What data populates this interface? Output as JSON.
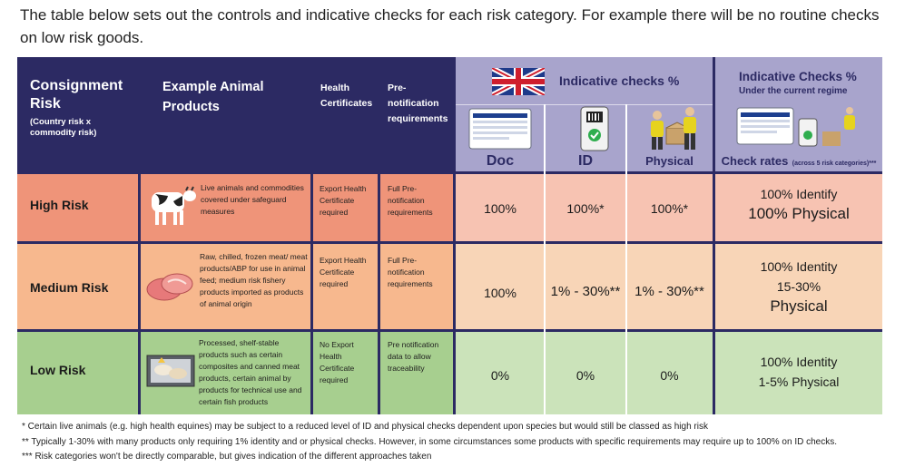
{
  "intro_text": "The table below sets out the controls and indicative checks for each risk category. For example there will be no routine checks on low risk goods.",
  "header": {
    "consignment_title": "Consignment Risk",
    "consignment_sub": "(Country risk x commodity risk)",
    "example_products": "Example Animal Products",
    "health_certificates": "Health Certificates",
    "prenotification": "Pre-notification requirements",
    "indicative_uk": "Indicative checks %",
    "indicative_current": "Indicative Checks %",
    "under_regime": "Under the current regime",
    "doc": "Doc",
    "id": "ID",
    "physical": "Physical",
    "check_rates": "Check rates",
    "check_rates_sub": "(across 5 risk categories)***"
  },
  "rows": [
    {
      "category": "High Risk",
      "products": "Live animals and commodities covered under safeguard measures",
      "certificates": "Export Health Certificate required",
      "prenotification": "Full Pre-notification requirements",
      "doc": "100%",
      "id": "100%*",
      "physical": "100%*",
      "rate_line1": "100% Identify",
      "rate_line2": "100% Physical"
    },
    {
      "category": "Medium Risk",
      "products": "Raw, chilled, frozen meat/ meat products/ABP for use in animal feed; medium risk fishery products imported as products of animal origin",
      "certificates": "Export Health Certificate required",
      "prenotification": "Full Pre-notification requirements",
      "doc": "100%",
      "id": "1% - 30%**",
      "physical": "1% - 30%**",
      "rate_line1": "100% Identity",
      "rate_line2": "15-30%",
      "rate_line3": "Physical"
    },
    {
      "category": "Low Risk",
      "products": "Processed, shelf-stable products such as certain composites and canned meat products, certain animal by products for technical use and certain fish products",
      "certificates": "No Export Health Certificate required",
      "prenotification": "Pre notification data to allow traceability",
      "doc": "0%",
      "id": "0%",
      "physical": "0%",
      "rate_line1": "100% Identity",
      "rate_line2": "1-5% Physical"
    }
  ],
  "footnotes": [
    "* Certain live animals (e.g. high health equines) may be subject to a reduced level of ID and physical checks dependent upon species but would still be classed as high risk",
    "** Typically 1-30% with many products only requiring 1% identity and or physical checks. However, in some circumstances some products with specific requirements may require up to 100% on ID checks.",
    "*** Risk categories won't be directly comparable, but gives indication of the different approaches taken"
  ],
  "colors": {
    "navy": "#2c2a63",
    "header_lavender": "#a8a4cc",
    "high": "#ef9479",
    "medium": "#f7b88e",
    "low": "#a7cf8f"
  }
}
